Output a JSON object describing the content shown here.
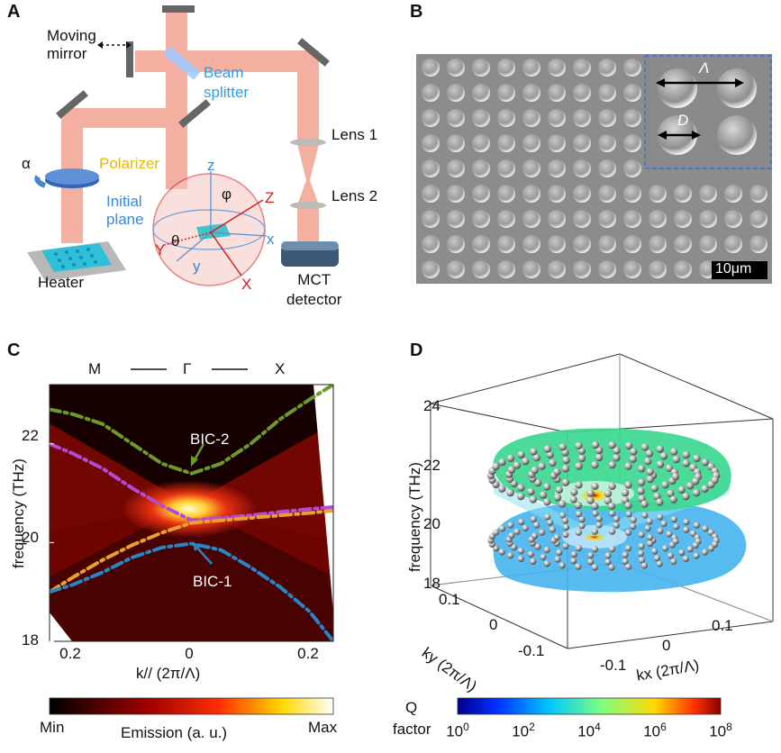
{
  "panels": {
    "a": "A",
    "b": "B",
    "c": "C",
    "d": "D"
  },
  "panel_a": {
    "moving_mirror": "Moving\nmirror",
    "beam_splitter": "Beam\nsplitter",
    "lens1": "Lens 1",
    "lens2": "Lens 2",
    "polarizer": "Polarizer",
    "alpha": "α",
    "initial_plane": "Initial\nplane",
    "heater": "Heater",
    "detector": "MCT\ndetector",
    "axis_z_lower": "z",
    "axis_Z": "Z",
    "axis_x_lower": "x",
    "axis_X": "X",
    "axis_y_lower": "y",
    "axis_Y": "Y",
    "phi": "φ",
    "theta": "θ"
  },
  "panel_b": {
    "lambda": "Λ",
    "diameter": "D",
    "scale_bar": "10μm"
  },
  "chart_data": [
    {
      "panel": "C",
      "type": "heatmap",
      "top_labels": [
        "M",
        "Γ",
        "X"
      ],
      "xlabel": "k// (2π/Λ)",
      "ylabel": "frequency (THz)",
      "x_ticks": [
        "0.2",
        "0",
        "0.2"
      ],
      "x_tick_values": [
        -0.2,
        0,
        0.2
      ],
      "y_ticks": [
        "18",
        "20",
        "22"
      ],
      "y_tick_values": [
        18,
        20,
        22
      ],
      "xlim": [
        -0.24,
        0.24
      ],
      "ylim": [
        18,
        23.2
      ],
      "annotations": [
        "BIC-2",
        "BIC-1"
      ],
      "colorbar": {
        "min_label": "Min",
        "max_label": "Max",
        "label": "Emission (a. u.)"
      },
      "series": [
        {
          "name": "BIC-2 band",
          "color": "#6a9a2a",
          "x": [
            -0.24,
            -0.2,
            -0.15,
            -0.1,
            -0.05,
            0,
            0.05,
            0.1,
            0.15,
            0.2,
            0.24
          ],
          "y": [
            22.7,
            22.6,
            22.4,
            22.0,
            21.6,
            21.4,
            21.6,
            22.0,
            22.5,
            22.9,
            23.2
          ]
        },
        {
          "name": "upper crossing band",
          "color": "#b44ad8",
          "x": [
            -0.24,
            -0.2,
            -0.15,
            -0.1,
            -0.05,
            0,
            0.05,
            0.1,
            0.15,
            0.2,
            0.24
          ],
          "y": [
            22.0,
            21.8,
            21.5,
            21.1,
            20.75,
            20.45,
            20.5,
            20.55,
            20.62,
            20.68,
            20.72
          ]
        },
        {
          "name": "lower crossing band",
          "color": "#e8a030",
          "x": [
            -0.24,
            -0.2,
            -0.15,
            -0.1,
            -0.05,
            0,
            0.05,
            0.1,
            0.15,
            0.2,
            0.24
          ],
          "y": [
            19.0,
            19.3,
            19.65,
            19.95,
            20.2,
            20.4,
            20.45,
            20.5,
            20.55,
            20.6,
            20.65
          ]
        },
        {
          "name": "BIC-1 band",
          "color": "#2a84c8",
          "x": [
            -0.24,
            -0.2,
            -0.15,
            -0.1,
            -0.05,
            0,
            0.05,
            0.1,
            0.15,
            0.2,
            0.24
          ],
          "y": [
            19.0,
            19.15,
            19.4,
            19.7,
            19.9,
            19.98,
            19.85,
            19.5,
            19.1,
            18.6,
            18.0
          ]
        }
      ]
    },
    {
      "panel": "D",
      "type": "scatter",
      "zlabel": "frequency (THz)",
      "z_ticks": [
        "18",
        "20",
        "22",
        "24"
      ],
      "z_tick_values": [
        18,
        20,
        22,
        24
      ],
      "ky_label": "ky (2π/Λ)",
      "ky_ticks": [
        "0.1",
        "0",
        "-0.1"
      ],
      "ky_tick_values": [
        0.1,
        0,
        -0.1
      ],
      "kx_label": "kx (2π/Λ)",
      "kx_ticks": [
        "-0.1",
        "0",
        "0.1"
      ],
      "kx_tick_values": [
        -0.1,
        0,
        0.1
      ],
      "bands": [
        {
          "name": "upper band",
          "center_frequency": 20.9,
          "color": "#3cd890"
        },
        {
          "name": "lower band",
          "center_frequency": 19.7,
          "color": "#46b4ee"
        }
      ],
      "colorbar": {
        "label_line1": "Q",
        "label_line2": "factor",
        "tick_labels": [
          "10",
          "10",
          "10",
          "10",
          "10"
        ],
        "tick_exponents": [
          "0",
          "2",
          "4",
          "6",
          "8"
        ],
        "log10_range": [
          0,
          8
        ]
      }
    }
  ]
}
